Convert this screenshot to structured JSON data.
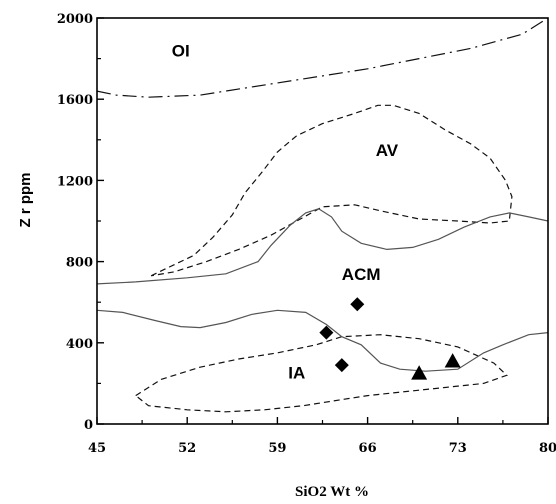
{
  "chart_data": {
    "type": "scatter",
    "xlabel": "SiO2 Wt %",
    "ylabel": "Z r ppm",
    "xlim": [
      45,
      80
    ],
    "ylim": [
      0,
      2000
    ],
    "x_ticks": [
      45,
      52,
      59,
      66,
      73,
      80
    ],
    "y_ticks": [
      0,
      400,
      800,
      1200,
      1600,
      2000
    ],
    "grid": false,
    "field_labels": [
      {
        "text": "OI",
        "x": 51.5,
        "y": 1810
      },
      {
        "text": "AV",
        "x": 67.5,
        "y": 1320
      },
      {
        "text": "ACM",
        "x": 65.5,
        "y": 710
      },
      {
        "text": "IA",
        "x": 60.5,
        "y": 225
      }
    ],
    "series": [
      {
        "marker": "diamond",
        "points": [
          [
            62.8,
            450
          ],
          [
            64.0,
            290
          ],
          [
            65.2,
            590
          ]
        ]
      },
      {
        "marker": "triangle",
        "points": [
          [
            70.0,
            250
          ],
          [
            72.6,
            310
          ]
        ]
      }
    ],
    "boundaries": [
      {
        "style": "dash-dot",
        "points": [
          [
            45,
            1640
          ],
          [
            46.5,
            1620
          ],
          [
            49,
            1610
          ],
          [
            53,
            1620
          ],
          [
            57,
            1660
          ],
          [
            62,
            1710
          ],
          [
            66,
            1750
          ],
          [
            70,
            1800
          ],
          [
            74,
            1850
          ],
          [
            78,
            1920
          ],
          [
            80,
            2000
          ]
        ]
      },
      {
        "style": "dashed",
        "points": [
          [
            49.2,
            730
          ],
          [
            50.5,
            770
          ],
          [
            52.5,
            830
          ],
          [
            54,
            920
          ],
          [
            55.5,
            1030
          ],
          [
            56.5,
            1140
          ],
          [
            57.8,
            1240
          ],
          [
            59,
            1340
          ],
          [
            60.5,
            1420
          ],
          [
            62.5,
            1480
          ],
          [
            65,
            1530
          ],
          [
            66.8,
            1570
          ],
          [
            68,
            1570
          ],
          [
            70,
            1530
          ],
          [
            72,
            1450
          ],
          [
            74,
            1380
          ],
          [
            75.5,
            1310
          ],
          [
            76.7,
            1200
          ],
          [
            77.2,
            1120
          ],
          [
            77,
            1000
          ],
          [
            75.5,
            990
          ],
          [
            73,
            1000
          ],
          [
            70,
            1010
          ],
          [
            67,
            1050
          ],
          [
            65,
            1080
          ],
          [
            62.5,
            1070
          ],
          [
            60.5,
            1000
          ],
          [
            58.5,
            930
          ],
          [
            56,
            860
          ],
          [
            53.5,
            800
          ],
          [
            51,
            750
          ],
          [
            49.2,
            730
          ]
        ]
      },
      {
        "style": "dashed",
        "points": [
          [
            48,
            140
          ],
          [
            50,
            220
          ],
          [
            53,
            280
          ],
          [
            56,
            320
          ],
          [
            59,
            350
          ],
          [
            62,
            390
          ],
          [
            64,
            430
          ],
          [
            67,
            440
          ],
          [
            70,
            420
          ],
          [
            73,
            380
          ],
          [
            75.8,
            300
          ],
          [
            76.8,
            240
          ],
          [
            75,
            200
          ],
          [
            72,
            180
          ],
          [
            69,
            160
          ],
          [
            66,
            140
          ],
          [
            64,
            120
          ],
          [
            61,
            90
          ],
          [
            58,
            70
          ],
          [
            55,
            60
          ],
          [
            52,
            70
          ],
          [
            49,
            90
          ],
          [
            48,
            140
          ]
        ]
      },
      {
        "style": "solid",
        "points": [
          [
            45,
            690
          ],
          [
            48,
            700
          ],
          [
            52,
            720
          ],
          [
            55,
            740
          ],
          [
            57.5,
            800
          ],
          [
            58.5,
            880
          ],
          [
            60,
            980
          ],
          [
            61.2,
            1040
          ],
          [
            62.2,
            1060
          ],
          [
            63.2,
            1020
          ],
          [
            64,
            950
          ],
          [
            65.5,
            890
          ],
          [
            67.5,
            860
          ],
          [
            69.5,
            870
          ],
          [
            71.5,
            910
          ],
          [
            73.5,
            970
          ],
          [
            75.5,
            1020
          ],
          [
            77,
            1040
          ],
          [
            78.5,
            1020
          ],
          [
            80,
            1000
          ]
        ]
      },
      {
        "style": "solid",
        "points": [
          [
            45,
            560
          ],
          [
            47,
            550
          ],
          [
            49.5,
            510
          ],
          [
            51.5,
            480
          ],
          [
            53,
            475
          ],
          [
            55,
            500
          ],
          [
            57,
            540
          ],
          [
            59,
            560
          ],
          [
            61.2,
            550
          ],
          [
            62.8,
            490
          ],
          [
            64,
            430
          ],
          [
            65.5,
            390
          ],
          [
            67,
            300
          ],
          [
            68.5,
            270
          ],
          [
            70.5,
            260
          ],
          [
            73,
            270
          ],
          [
            75,
            350
          ],
          [
            76.5,
            390
          ],
          [
            78.5,
            440
          ],
          [
            80,
            450
          ]
        ]
      }
    ]
  }
}
